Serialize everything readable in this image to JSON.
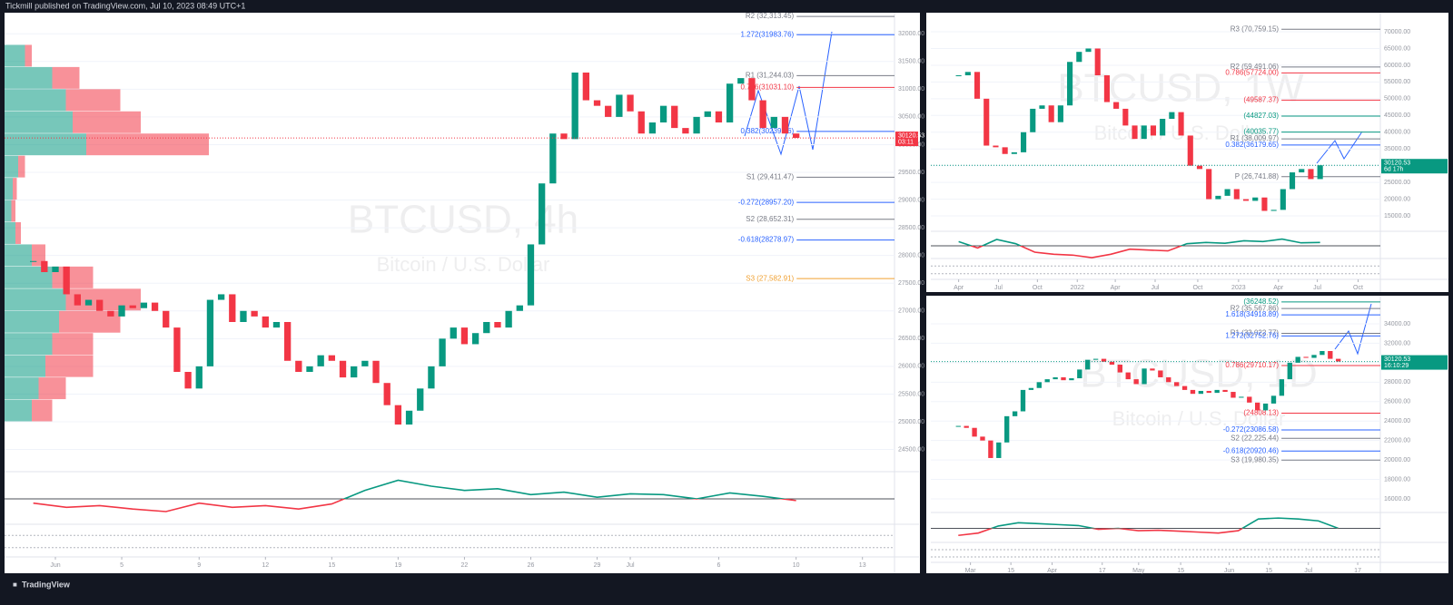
{
  "header": "Tickmill published on TradingView.com, Jul 10, 2023 08:49 UTC+1",
  "footer": "TradingView",
  "chart_data": [
    {
      "type": "candlestick",
      "title": "BTCUSD, 4h",
      "subtitle": "Bitcoin / U.S. Dollar",
      "closes": [
        27900,
        27700,
        27800,
        27300,
        27100,
        27200,
        27000,
        26900,
        27100,
        27050,
        27150,
        27000,
        26700,
        25900,
        25600,
        26000,
        27200,
        27300,
        26800,
        27000,
        26900,
        26700,
        26800,
        26100,
        25900,
        26000,
        26200,
        26100,
        25800,
        26000,
        26100,
        25700,
        25300,
        24950,
        25200,
        25600,
        26000,
        26500,
        26700,
        26400,
        26600,
        26800,
        26700,
        27000,
        27100,
        28200,
        29300,
        30200,
        30100,
        31300,
        30800,
        30700,
        30500,
        30900,
        30600,
        30200,
        30400,
        30700,
        30300,
        30200,
        30500,
        30600,
        30400,
        31100,
        31200,
        30800,
        30300,
        30500,
        30200,
        30120.53
      ],
      "up_color": "#089981",
      "down_color": "#f23645",
      "xlim": [
        -2.6,
        77.9
      ],
      "ylim": [
        24100,
        32380
      ],
      "yticks": [
        {
          "value": 24500,
          "label": "24500.00"
        },
        {
          "value": 25000,
          "label": "25000.00"
        },
        {
          "value": 25500,
          "label": "25500.00"
        },
        {
          "value": 26000,
          "label": "26000.00"
        },
        {
          "value": 26500,
          "label": "26500.00"
        },
        {
          "value": 27000,
          "label": "27000.00"
        },
        {
          "value": 27500,
          "label": "27500.00"
        },
        {
          "value": 28000,
          "label": "28000.00"
        },
        {
          "value": 28500,
          "label": "28500.00"
        },
        {
          "value": 29000,
          "label": "29000.00"
        },
        {
          "value": 29500,
          "label": "29500.00"
        },
        {
          "value": 30000,
          "label": "30000.00"
        },
        {
          "value": 30500,
          "label": "30500.00"
        },
        {
          "value": 31000,
          "label": "31000.00"
        },
        {
          "value": 31500,
          "label": "31500.00"
        },
        {
          "value": 32000,
          "label": "32000.00"
        }
      ],
      "xticks": [
        {
          "value": 2,
          "label": "Jun"
        },
        {
          "value": 8,
          "label": "5"
        },
        {
          "value": 15,
          "label": "9"
        },
        {
          "value": 21,
          "label": "12"
        },
        {
          "value": 27,
          "label": "15"
        },
        {
          "value": 33,
          "label": "19"
        },
        {
          "value": 39,
          "label": "22"
        },
        {
          "value": 45,
          "label": "26"
        },
        {
          "value": 51,
          "label": "29"
        },
        {
          "value": 54,
          "label": "Jul"
        },
        {
          "value": 62,
          "label": "6"
        },
        {
          "value": 69,
          "label": "10"
        },
        {
          "value": 75,
          "label": "13"
        }
      ],
      "levels": [
        {
          "label": "R2 (32,313.45)",
          "value": 32313.45,
          "color": "#787b86"
        },
        {
          "label": "1.272(31983.76)",
          "value": 31983.76,
          "color": "#2962ff"
        },
        {
          "label": "R1 (31,244.03)",
          "value": 31244.03,
          "color": "#787b86"
        },
        {
          "label": "0.786(31031.10)",
          "value": 31031.1,
          "color": "#f23645"
        },
        {
          "label": "0.382(30239.16)",
          "value": 30239.16,
          "color": "#2962ff"
        },
        {
          "label": "S1 (29,411.47)",
          "value": 29411.47,
          "color": "#787b86"
        },
        {
          "label": "-0.272(28957.20)",
          "value": 28957.2,
          "color": "#2962ff"
        },
        {
          "label": "S2 (28,652.31)",
          "value": 28652.31,
          "color": "#787b86"
        },
        {
          "label": "-0.618(28278.97)",
          "value": 28278.97,
          "color": "#2962ff"
        },
        {
          "label": "S3 (27,582.91)",
          "value": 27582.91,
          "color": "#f0a030"
        }
      ],
      "last_price": 30120.53,
      "countdown": "03:11",
      "price_color": "#f23645",
      "volume_profile": {
        "edges": [
          25000,
          25400,
          25800,
          26200,
          26600,
          27000,
          27400,
          27800,
          28200,
          28600,
          29000,
          29400,
          29800,
          30200,
          30600,
          31000,
          31400,
          31800
        ],
        "buy": [
          20,
          25,
          30,
          35,
          40,
          45,
          35,
          20,
          8,
          5,
          6,
          10,
          60,
          50,
          45,
          35,
          15
        ],
        "sell": [
          15,
          20,
          35,
          30,
          45,
          55,
          30,
          10,
          4,
          3,
          3,
          5,
          90,
          50,
          40,
          20,
          5
        ]
      },
      "rsi": {
        "values": [
          45,
          40,
          42,
          38,
          35,
          45,
          40,
          42,
          38,
          44,
          60,
          72,
          65,
          60,
          62,
          55,
          58,
          52,
          56,
          55,
          50,
          57,
          53,
          48
        ],
        "ylim": [
          20,
          80
        ],
        "level": 50
      }
    },
    {
      "type": "candlestick",
      "title": "BTCUSD, 1W",
      "subtitle": "Bitcoin / U.S. Dollar",
      "closes": [
        57000,
        58000,
        50000,
        36000,
        35500,
        33500,
        34000,
        40000,
        47000,
        48000,
        43000,
        48000,
        61000,
        64000,
        65000,
        57000,
        49000,
        47000,
        42000,
        38000,
        42000,
        39000,
        44000,
        46000,
        39000,
        30000,
        29000,
        20000,
        21000,
        23000,
        20000,
        19500,
        20500,
        16500,
        16800,
        23000,
        28000,
        29000,
        26000,
        30120.53
      ],
      "up_color": "#089981",
      "down_color": "#f23645",
      "xlim": [
        -3,
        45.5
      ],
      "ylim": [
        10400,
        75700
      ],
      "yticks": [
        {
          "value": 15000,
          "label": "15000.00"
        },
        {
          "value": 20000,
          "label": "20000.00"
        },
        {
          "value": 25000,
          "label": "25000.00"
        },
        {
          "value": 30000,
          "label": "30000.00"
        },
        {
          "value": 35000,
          "label": "35000.00"
        },
        {
          "value": 40000,
          "label": "40000.00"
        },
        {
          "value": 45000,
          "label": "45000.00"
        },
        {
          "value": 50000,
          "label": "50000.00"
        },
        {
          "value": 55000,
          "label": "55000.00"
        },
        {
          "value": 60000,
          "label": "60000.00"
        },
        {
          "value": 65000,
          "label": "65000.00"
        },
        {
          "value": 70000,
          "label": "70000.00"
        }
      ],
      "xticks": [
        {
          "value": 0,
          "label": "Apr"
        },
        {
          "value": 4.3,
          "label": "Jul"
        },
        {
          "value": 8.5,
          "label": "Oct"
        },
        {
          "value": 12.8,
          "label": "2022"
        },
        {
          "value": 16.9,
          "label": "Apr"
        },
        {
          "value": 21.2,
          "label": "Jul"
        },
        {
          "value": 25.8,
          "label": "Oct"
        },
        {
          "value": 30.2,
          "label": "2023"
        },
        {
          "value": 34.5,
          "label": "Apr"
        },
        {
          "value": 38.7,
          "label": "Jul"
        },
        {
          "value": 43.1,
          "label": "Oct"
        }
      ],
      "levels": [
        {
          "label": "R3 (70,759.15)",
          "value": 70759.15,
          "color": "#787b86"
        },
        {
          "label": "R2 (59,491.06)",
          "value": 59491.06,
          "color": "#787b86"
        },
        {
          "label": "0.786(57724.00)",
          "value": 57724,
          "color": "#f23645"
        },
        {
          "label": "(49587.37)",
          "value": 49587.37,
          "color": "#f23645"
        },
        {
          "label": "(44827.03)",
          "value": 44827.03,
          "color": "#089981"
        },
        {
          "label": "(40035.77)",
          "value": 40035.77,
          "color": "#089981"
        },
        {
          "label": "R1 (38,009.97)",
          "value": 38009.97,
          "color": "#787b86"
        },
        {
          "label": "0.382(36179.65)",
          "value": 36179.65,
          "color": "#2962ff"
        },
        {
          "label": "P (26,741.88)",
          "value": 26741.88,
          "color": "#787b86"
        }
      ],
      "last_price": 30120.53,
      "countdown": "6d 17h",
      "price_color": "#089981",
      "rsi": {
        "values": [
          60,
          45,
          65,
          55,
          35,
          30,
          28,
          22,
          30,
          42,
          40,
          38,
          55,
          58,
          56,
          62,
          60,
          66,
          57,
          58
        ],
        "ylim": [
          20,
          80
        ],
        "level": 50
      }
    },
    {
      "type": "candlestick",
      "title": "BTCUSD, 1D",
      "subtitle": "Bitcoin / U.S. Dollar",
      "closes": [
        23500,
        23300,
        22400,
        22000,
        20200,
        21800,
        24500,
        25000,
        27200,
        27400,
        28000,
        28300,
        28500,
        28200,
        28400,
        29300,
        30300,
        30400,
        30100,
        29800,
        29000,
        28300,
        27800,
        29400,
        29200,
        28500,
        28000,
        27600,
        27200,
        26800,
        27100,
        26900,
        27200,
        27000,
        26400,
        26500,
        25900,
        25100,
        25800,
        26600,
        28300,
        30000,
        30600,
        30500,
        30800,
        31200,
        30400,
        30120.53
      ],
      "up_color": "#089981",
      "down_color": "#f23645",
      "xlim": [
        -3.4,
        52.2
      ],
      "ylim": [
        14600,
        36890
      ],
      "yticks": [
        {
          "value": 16000,
          "label": "16000.00"
        },
        {
          "value": 18000,
          "label": "18000.00"
        },
        {
          "value": 20000,
          "label": "20000.00"
        },
        {
          "value": 22000,
          "label": "22000.00"
        },
        {
          "value": 24000,
          "label": "24000.00"
        },
        {
          "value": 26000,
          "label": "26000.00"
        },
        {
          "value": 28000,
          "label": "28000.00"
        },
        {
          "value": 30000,
          "label": "30000.00"
        },
        {
          "value": 32000,
          "label": "32000.00"
        },
        {
          "value": 34000,
          "label": "34000.00"
        }
      ],
      "xticks": [
        {
          "value": 1.5,
          "label": "Mar"
        },
        {
          "value": 6.5,
          "label": "15"
        },
        {
          "value": 11.6,
          "label": "Apr"
        },
        {
          "value": 17.8,
          "label": "17"
        },
        {
          "value": 22.3,
          "label": "May"
        },
        {
          "value": 27.5,
          "label": "15"
        },
        {
          "value": 33.5,
          "label": "Jun"
        },
        {
          "value": 38.4,
          "label": "15"
        },
        {
          "value": 43.3,
          "label": "Jul"
        },
        {
          "value": 49.4,
          "label": "17"
        }
      ],
      "levels": [
        {
          "label": "(36248.52)",
          "value": 36248.52,
          "color": "#089981"
        },
        {
          "label": "R2 (35,567.86)",
          "value": 35567.86,
          "color": "#787b86"
        },
        {
          "label": "1.618(34918.89)",
          "value": 34918.89,
          "color": "#2962ff"
        },
        {
          "label": "R1 (33,022.77)",
          "value": 33022.77,
          "color": "#787b86"
        },
        {
          "label": "1.272(32752.76)",
          "value": 32752.76,
          "color": "#2962ff"
        },
        {
          "label": "0.786(29710.17)",
          "value": 29710.17,
          "color": "#f23645"
        },
        {
          "label": "(24808.13)",
          "value": 24808.13,
          "color": "#f23645"
        },
        {
          "label": "-0.272(23086.58)",
          "value": 23086.58,
          "color": "#2962ff"
        },
        {
          "label": "S2 (22,225.44)",
          "value": 22225.44,
          "color": "#787b86"
        },
        {
          "label": "-0.618(20920.46)",
          "value": 20920.46,
          "color": "#2962ff"
        },
        {
          "label": "S3 (19,980.35)",
          "value": 19980.35,
          "color": "#787b86"
        }
      ],
      "last_price": 30120.53,
      "countdown": "16:10:29",
      "price_color": "#089981",
      "rsi": {
        "values": [
          35,
          40,
          55,
          62,
          60,
          58,
          56,
          48,
          50,
          45,
          46,
          44,
          42,
          40,
          45,
          70,
          72,
          70,
          66,
          50
        ],
        "ylim": [
          20,
          80
        ],
        "level": 50
      }
    }
  ]
}
